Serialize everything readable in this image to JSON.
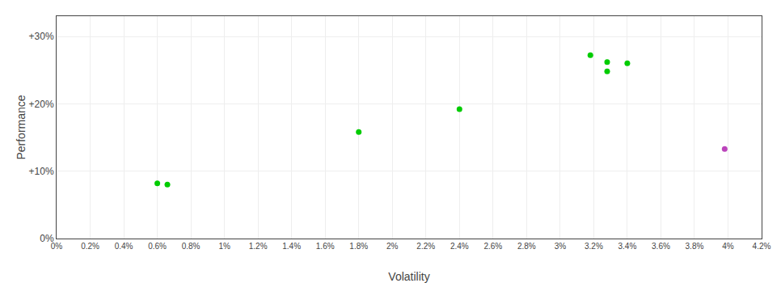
{
  "chart_data": {
    "type": "scatter",
    "x_label": "Volatility",
    "y_label": "Performance",
    "xlim": [
      0.0,
      0.042
    ],
    "ylim": [
      0.0,
      0.33
    ],
    "xticks": [
      {
        "value": 0.0,
        "label": "0%"
      },
      {
        "value": 0.002,
        "label": "0.2%"
      },
      {
        "value": 0.004,
        "label": "0.4%"
      },
      {
        "value": 0.006,
        "label": "0.6%"
      },
      {
        "value": 0.008,
        "label": "0.8%"
      },
      {
        "value": 0.01,
        "label": "1%"
      },
      {
        "value": 0.012,
        "label": "1.2%"
      },
      {
        "value": 0.014,
        "label": "1.4%"
      },
      {
        "value": 0.016,
        "label": "1.6%"
      },
      {
        "value": 0.018,
        "label": "1.8%"
      },
      {
        "value": 0.02,
        "label": "2%"
      },
      {
        "value": 0.022,
        "label": "2.2%"
      },
      {
        "value": 0.024,
        "label": "2.4%"
      },
      {
        "value": 0.026,
        "label": "2.6%"
      },
      {
        "value": 0.028,
        "label": "2.8%"
      },
      {
        "value": 0.03,
        "label": "3%"
      },
      {
        "value": 0.032,
        "label": "3.2%"
      },
      {
        "value": 0.034,
        "label": "3.4%"
      },
      {
        "value": 0.036,
        "label": "3.6%"
      },
      {
        "value": 0.038,
        "label": "3.8%"
      },
      {
        "value": 0.04,
        "label": "4%"
      },
      {
        "value": 0.042,
        "label": "4.2%"
      }
    ],
    "yticks": [
      {
        "value": 0.0,
        "label": "0%"
      },
      {
        "value": 0.1,
        "label": "+10%"
      },
      {
        "value": 0.2,
        "label": "+20%"
      },
      {
        "value": 0.3,
        "label": "+30%"
      }
    ],
    "grid": true,
    "series": [
      {
        "color": "#00cc00",
        "x": [
          0.006,
          0.0066,
          0.018,
          0.024,
          0.0318,
          0.0328,
          0.034,
          0.0328
        ],
        "values": [
          0.082,
          0.08,
          0.158,
          0.192,
          0.272,
          0.262,
          0.26,
          0.248
        ]
      },
      {
        "color": "#bb44bb",
        "x": [
          0.0398
        ],
        "values": [
          0.133
        ]
      }
    ]
  }
}
